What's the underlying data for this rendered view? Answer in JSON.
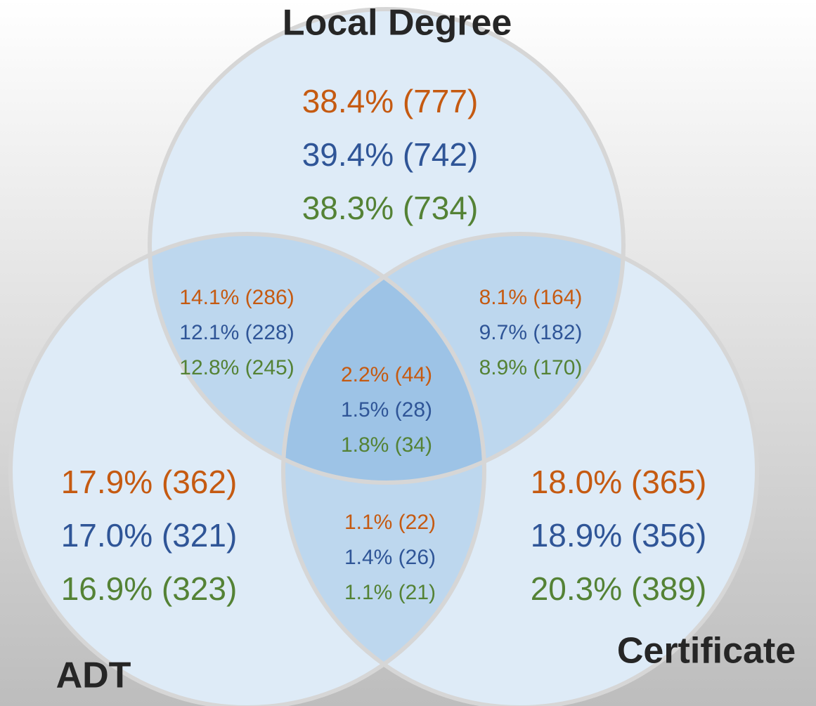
{
  "sets": [
    {
      "label": "Local Degree"
    },
    {
      "label": "ADT"
    },
    {
      "label": "Certificate"
    }
  ],
  "regions": [
    {
      "lines": [
        "38.4% (777)",
        "39.4% (742)",
        "38.3% (734)"
      ]
    },
    {
      "lines": [
        "14.1% (286)",
        "12.1% (228)",
        "12.8% (245)"
      ]
    },
    {
      "lines": [
        "8.1% (164)",
        "9.7% (182)",
        "8.9% (170)"
      ]
    },
    {
      "lines": [
        "2.2% (44)",
        "1.5% (28)",
        "1.8% (34)"
      ]
    },
    {
      "lines": [
        "17.9% (362)",
        "17.0% (321)",
        "16.9% (323)"
      ]
    },
    {
      "lines": [
        "18.0% (365)",
        "18.9% (356)",
        "20.3% (389)"
      ]
    },
    {
      "lines": [
        "1.1% (22)",
        "1.4% (26)",
        "1.1% (21)"
      ]
    }
  ]
}
